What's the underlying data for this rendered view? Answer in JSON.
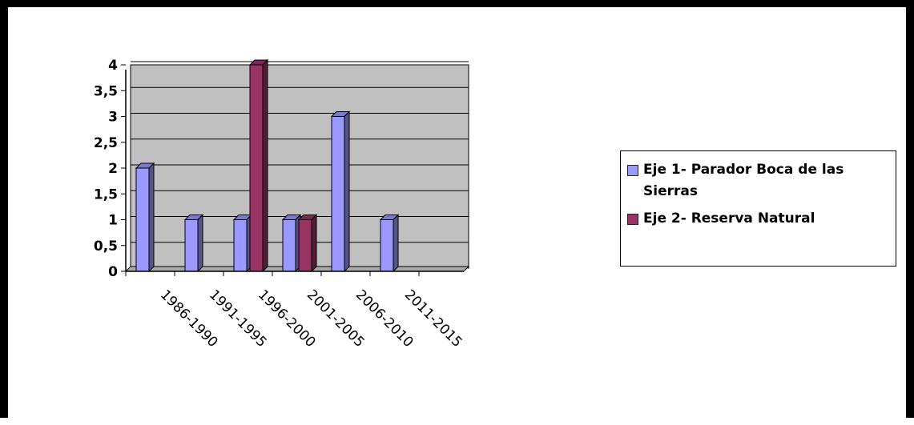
{
  "chart_data": {
    "type": "bar",
    "title": "",
    "xlabel": "",
    "ylabel": "",
    "categories": [
      "1986-1990",
      "1991-1995",
      "1996-2000",
      "2001-2005",
      "2006-2010",
      "2011-2015"
    ],
    "series": [
      {
        "name": "Eje 1- Parador Boca de las Sierras",
        "values": [
          2,
          1,
          1,
          1,
          3,
          1
        ],
        "color": "#9999ff"
      },
      {
        "name": "Eje 2- Reserva Natural",
        "values": [
          0,
          0,
          4,
          1,
          0,
          0
        ],
        "color": "#993366"
      }
    ],
    "ylim": [
      0,
      4
    ],
    "yticks": [
      "0",
      "0,5",
      "1",
      "1,5",
      "2",
      "2,5",
      "3",
      "3,5",
      "4"
    ],
    "grid": true,
    "plot_background": "#c0c0c0",
    "legend_position": "right",
    "style": "3d-clustered-column"
  }
}
